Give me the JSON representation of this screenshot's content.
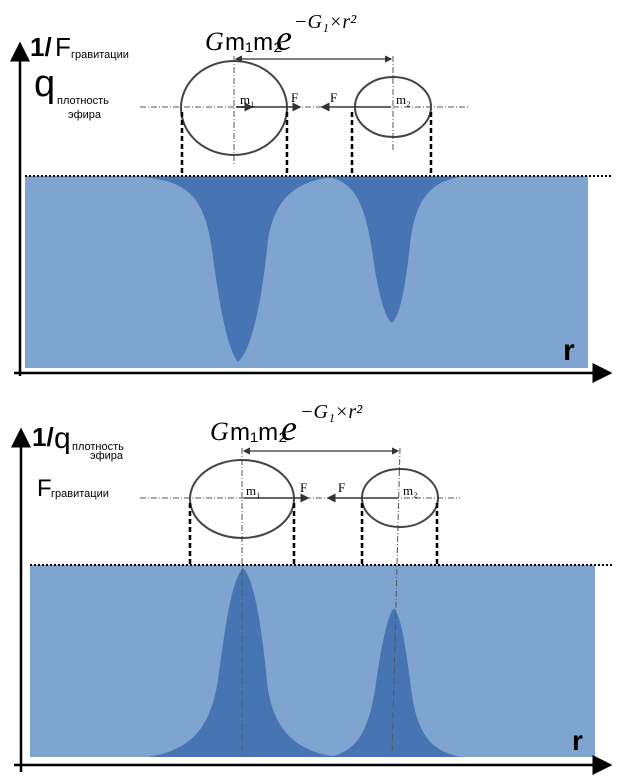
{
  "colors": {
    "medium": "#80a4d0",
    "well": "#3d6daf",
    "line": "#333333"
  },
  "panels": [
    {
      "axis_prefix": "1/",
      "axis_main_1": "F",
      "axis_sub_1": "гравитации",
      "axis_main_2": "q",
      "axis_sub_2a": "плотность",
      "axis_sub_2b": "эфира",
      "x_axis": "r",
      "formula": {
        "g": "G",
        "masses": "m₁m₂",
        "e": "e",
        "exponent": "−G₁×r²"
      },
      "mass1": "m₁",
      "mass2": "m₂",
      "force_label": "F",
      "shape": "wells"
    },
    {
      "axis_prefix": "1/",
      "axis_main_1": "q",
      "axis_sub_1a": "плотность",
      "axis_sub_1b": "эфира",
      "axis_main_2": "F",
      "axis_sub_2": "гравитации",
      "x_axis": "r",
      "formula": {
        "g": "G",
        "masses": "m₁m₂",
        "e": "e",
        "exponent": "−G₁×r²"
      },
      "mass1": "m₁",
      "mass2": "m₂",
      "force_label": "F",
      "shape": "peaks"
    }
  ]
}
